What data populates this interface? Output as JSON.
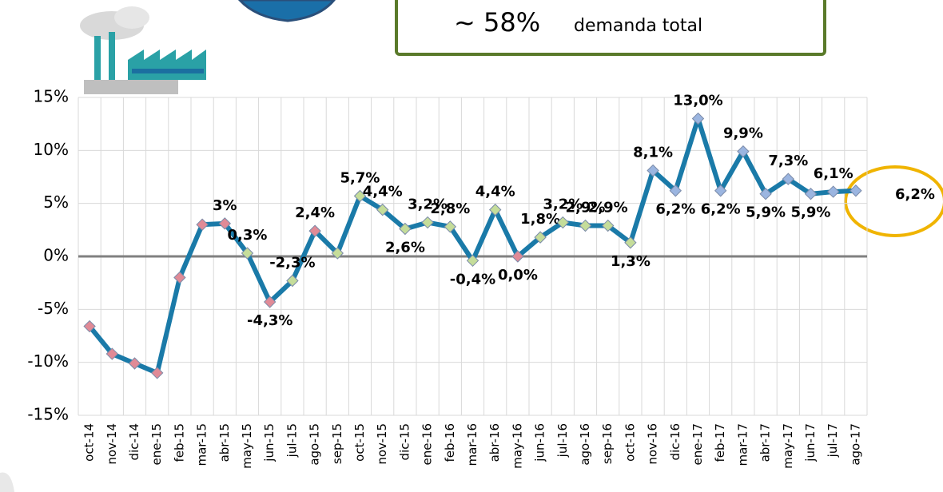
{
  "callout": {
    "prefix": "~ 58%",
    "text": "demanda total"
  },
  "chart_data": {
    "type": "line",
    "categories": [
      "oct-14",
      "nov-14",
      "dic-14",
      "ene-15",
      "feb-15",
      "mar-15",
      "abr-15",
      "may-15",
      "jun-15",
      "jul-15",
      "ago-15",
      "sep-15",
      "oct-15",
      "nov-15",
      "dic-15",
      "ene-16",
      "feb-16",
      "mar-16",
      "abr-16",
      "may-16",
      "jun-16",
      "jul-16",
      "ago-16",
      "sep-16",
      "oct-16",
      "nov-16",
      "dic-16",
      "ene-17",
      "feb-17",
      "mar-17",
      "abr-17",
      "may-17",
      "jun-17",
      "jul-17",
      "ago-17"
    ],
    "series": [
      {
        "color": "#1a7aa8",
        "values": [
          -6.6,
          -9.2,
          -10.1,
          -11.0,
          -2.0,
          3.0,
          3.1,
          0.3,
          -4.3,
          -2.3,
          2.4,
          0.3,
          5.7,
          4.4,
          2.6,
          3.2,
          2.8,
          -0.4,
          4.4,
          0.0,
          1.8,
          3.2,
          2.9,
          2.9,
          1.3,
          8.1,
          6.2,
          13.0,
          6.2,
          9.9,
          5.9,
          7.3,
          5.9,
          6.1,
          6.2
        ],
        "value_labels": [
          null,
          null,
          null,
          null,
          null,
          null,
          "3%",
          "0,3%",
          "-4,3%",
          "-2,3%",
          "2,4%",
          null,
          "5,7%",
          "4,4%",
          "2,6%",
          "3,2%",
          "2,8%",
          "-0,4%",
          "4,4%",
          "0,0%",
          "1,8%",
          "3,2%",
          "2,9%",
          "2,9%",
          "1,3%",
          "8,1%",
          "6,2%",
          "13,0%",
          "6,2%",
          "9,9%",
          "5,9%",
          "7,3%",
          "5,9%",
          "6,1%",
          "6,2%"
        ],
        "marker_colors": [
          "#e08a96",
          "#e08a96",
          "#e08a96",
          "#e08a96",
          "#e08a96",
          "#e08a96",
          "#e08a96",
          "#c5dd9a",
          "#e08a96",
          "#c5dd9a",
          "#e08a96",
          "#c5dd9a",
          "#c5dd9a",
          "#c5dd9a",
          "#c5dd9a",
          "#c5dd9a",
          "#c5dd9a",
          "#c5dd9a",
          "#c5dd9a",
          "#e08a96",
          "#c5dd9a",
          "#c5dd9a",
          "#c5dd9a",
          "#c5dd9a",
          "#c5dd9a",
          "#9bb5e0",
          "#9bb5e0",
          "#9bb5e0",
          "#9bb5e0",
          "#9bb5e0",
          "#9bb5e0",
          "#9bb5e0",
          "#9bb5e0",
          "#9bb5e0",
          "#9bb5e0"
        ]
      }
    ],
    "ylim": [
      -15,
      15
    ],
    "yticks": [
      {
        "value": -15,
        "label": "-15%"
      },
      {
        "value": -10,
        "label": "-10%"
      },
      {
        "value": -5,
        "label": "-5%"
      },
      {
        "value": 0,
        "label": "0%"
      },
      {
        "value": 5,
        "label": "5%"
      },
      {
        "value": 10,
        "label": "10%"
      },
      {
        "value": 15,
        "label": "15%"
      }
    ],
    "grid": true
  }
}
